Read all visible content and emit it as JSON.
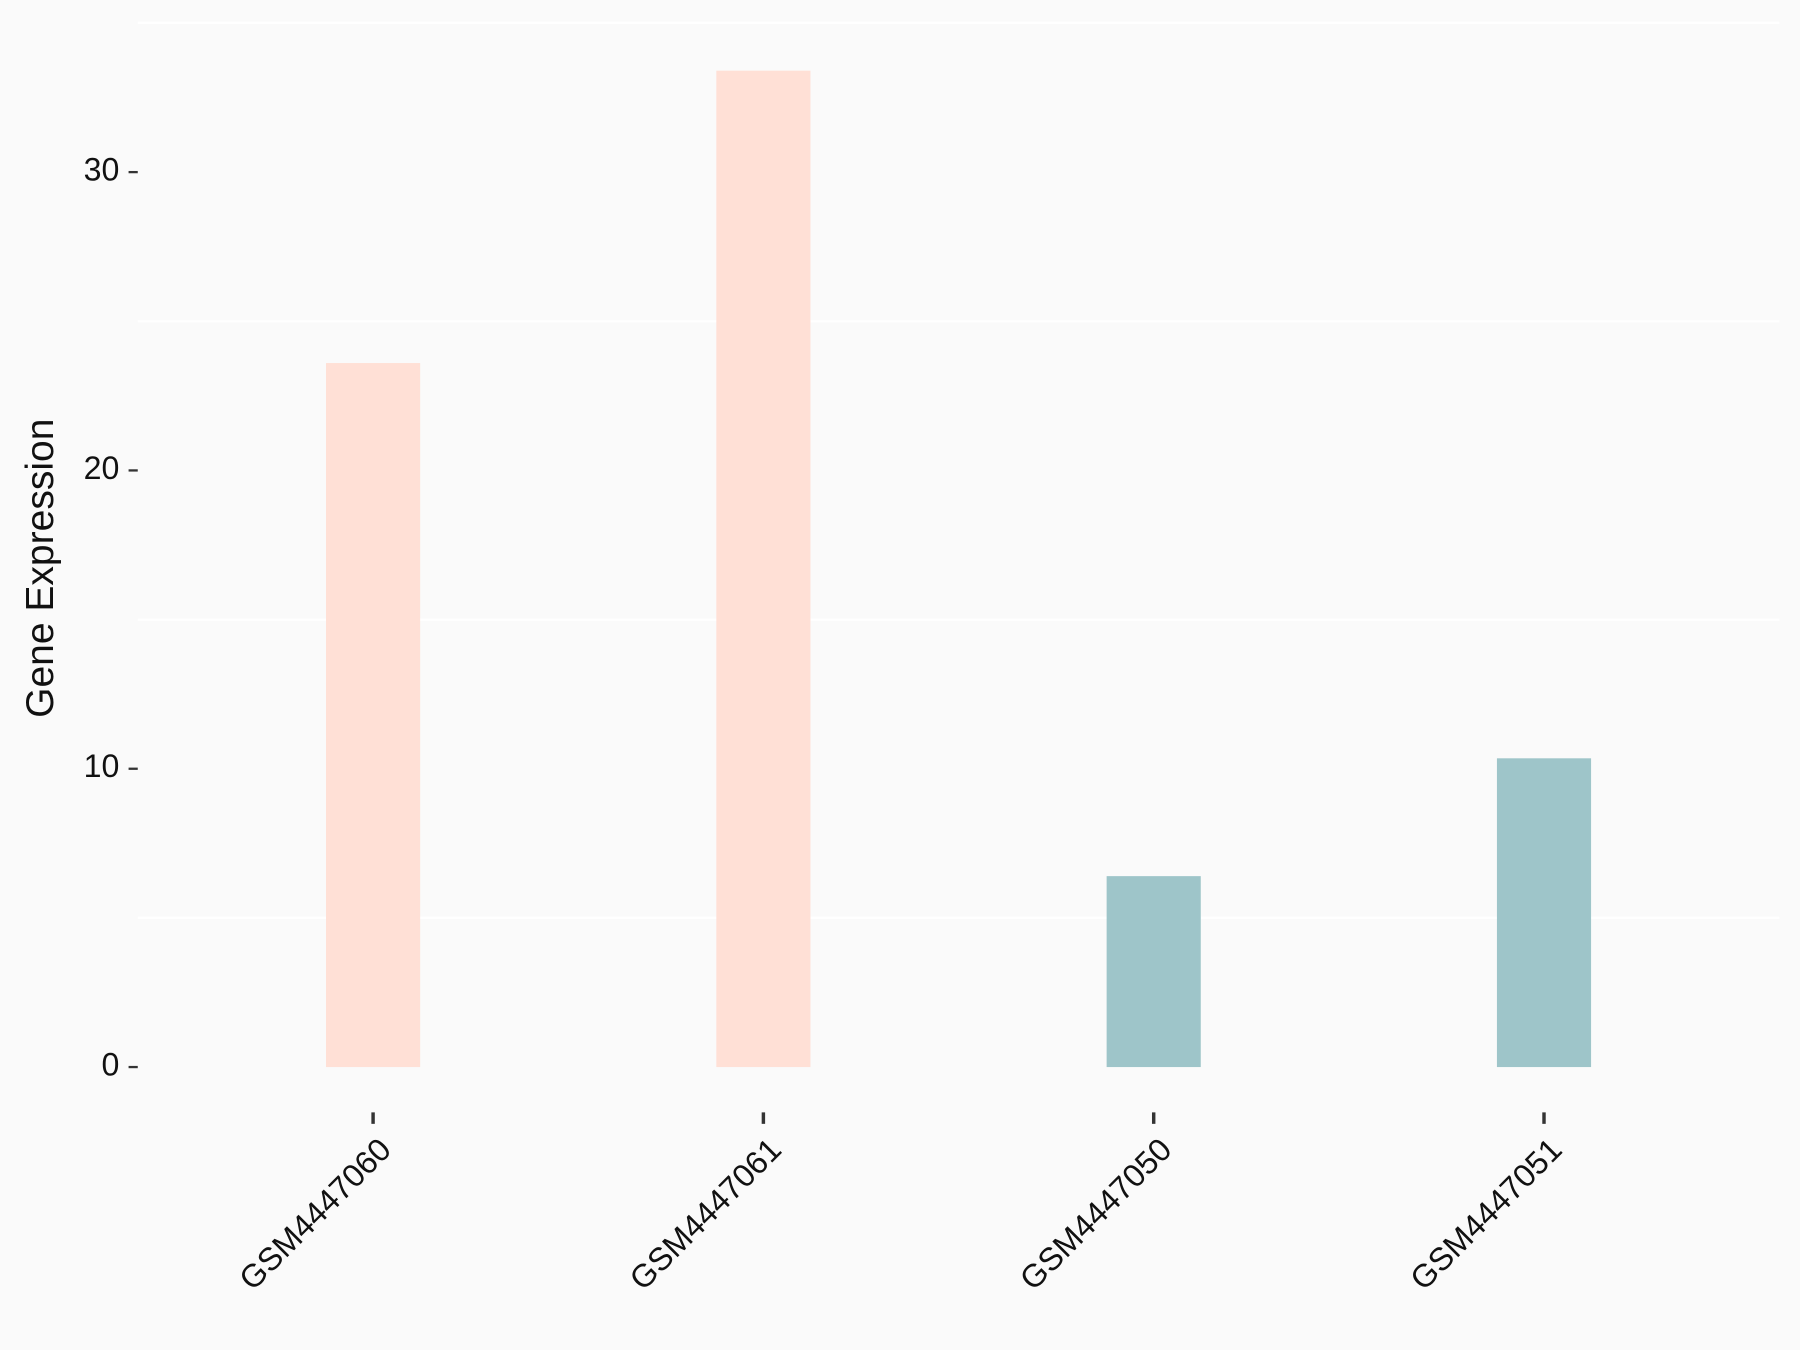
{
  "chart_data": {
    "type": "bar",
    "y_label": "Gene Expression",
    "categories": [
      "GSM4447060",
      "GSM4447061",
      "GSM4447050",
      "GSM4447051"
    ],
    "values": [
      23.6,
      33.4,
      6.4,
      10.35
    ],
    "colors": [
      "#ffe0d6",
      "#ffe0d6",
      "#9ec5c9",
      "#9ec5c9"
    ],
    "ylim": [
      -1.75,
      35
    ],
    "yticks": [
      0,
      10,
      20,
      30
    ],
    "minor_grid": [
      5,
      15,
      25,
      35
    ],
    "background": "#fafafa"
  }
}
